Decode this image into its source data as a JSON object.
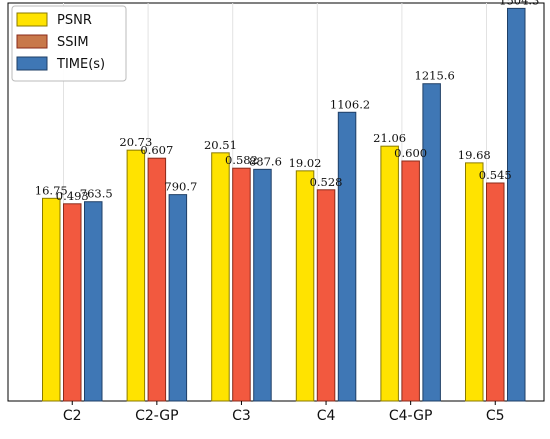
{
  "chart_data": {
    "type": "bar",
    "title": "",
    "xlabel": "",
    "ylabel": "",
    "grid": true,
    "legend_position": "top-left",
    "categories": [
      "C2",
      "C2-GP",
      "C3",
      "C4",
      "C4-GP",
      "C5"
    ],
    "series": [
      {
        "name": "PSNR",
        "color": "#ffe300",
        "edge": "#8a7a00",
        "values": [
          16.75,
          20.73,
          20.51,
          19.02,
          21.06,
          19.68
        ],
        "labels": [
          "16.75",
          "20.73",
          "20.51",
          "19.02",
          "21.06",
          "19.68"
        ]
      },
      {
        "name": "SSIM",
        "color": "#f2593f",
        "legend_color": "#c8784a",
        "edge": "#8a2a1a",
        "values": [
          0.493,
          0.607,
          0.582,
          0.528,
          0.6,
          0.545
        ],
        "labels": [
          "0.493",
          "0.607",
          "0.582",
          "0.528",
          "0.600",
          "0.545"
        ]
      },
      {
        "name": "TIME(s)",
        "color": "#3f77b5",
        "edge": "#1f3f66",
        "values": [
          763.5,
          790.7,
          887.6,
          1106.2,
          1215.6,
          1504.3
        ],
        "labels": [
          "763.5",
          "790.7",
          "887.6",
          "1106.2",
          "1215.6",
          "1504.3"
        ]
      }
    ]
  }
}
